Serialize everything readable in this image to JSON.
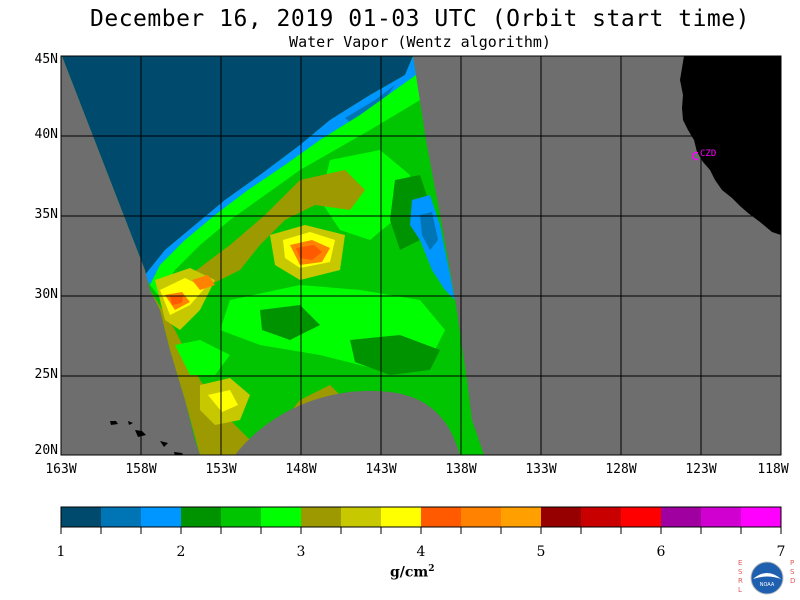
{
  "header": {
    "title": "December 16, 2019  01-03 UTC  (Orbit start time)",
    "subtitle": "Water Vapor (Wentz algorithm)"
  },
  "map": {
    "lat_labels": [
      "45N",
      "40N",
      "35N",
      "30N",
      "25N",
      "20N"
    ],
    "lon_labels": [
      "163W",
      "158W",
      "153W",
      "148W",
      "143W",
      "138W",
      "133W",
      "128W",
      "123W",
      "118W"
    ],
    "station_label": "CZD",
    "colors": {
      "land": "#000000",
      "no_data": "#6e6e6e",
      "station": "#ff00ff",
      "grid": "#000000"
    }
  },
  "colorbar": {
    "colors": [
      "#004a6e",
      "#0075b5",
      "#0096ff",
      "#009300",
      "#00c500",
      "#00ff00",
      "#9c9a00",
      "#c8c800",
      "#ffff00",
      "#ff5a00",
      "#ff8200",
      "#ffa000",
      "#960000",
      "#c80000",
      "#ff0000",
      "#a000a0",
      "#d000d0",
      "#ff00ff"
    ],
    "tick_labels": [
      "1",
      "2",
      "3",
      "4",
      "5",
      "6",
      "7"
    ],
    "unit_text": "g/cm",
    "unit_sup": "2"
  },
  "logo": {
    "left_letters": "ESRL",
    "right_letters": "PSD",
    "center_text": "NOAA"
  }
}
